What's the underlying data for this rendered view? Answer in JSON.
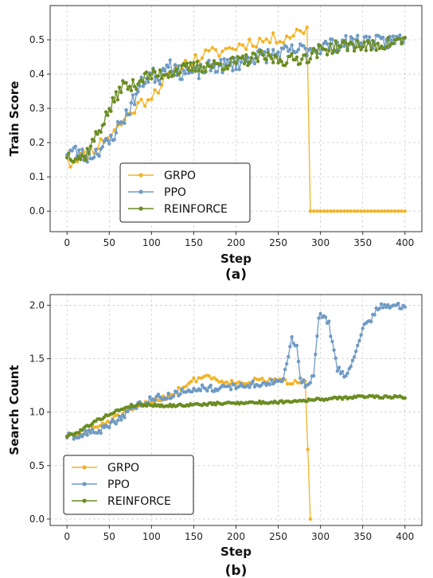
{
  "colors": {
    "GRPO": "#f2b324",
    "PPO": "#6f9ac4",
    "REINFORCE": "#6b8c23"
  },
  "chart_data": [
    {
      "type": "line",
      "caption": "(a)",
      "xlabel": "Step",
      "ylabel": "Train Score",
      "xlim": [
        -20,
        420
      ],
      "ylim": [
        -0.06,
        0.6
      ],
      "xticks": [
        "0",
        "50",
        "100",
        "150",
        "200",
        "250",
        "300",
        "350",
        "400"
      ],
      "yticks": [
        "0.0",
        "0.1",
        "0.2",
        "0.3",
        "0.4",
        "0.5"
      ],
      "grid": true,
      "legend_position": "lower-left",
      "series": [
        {
          "name": "GRPO",
          "anchors": [
            [
              0,
              0.165
            ],
            [
              5,
              0.13
            ],
            [
              10,
              0.16
            ],
            [
              20,
              0.16
            ],
            [
              40,
              0.2
            ],
            [
              60,
              0.245
            ],
            [
              80,
              0.3
            ],
            [
              100,
              0.34
            ],
            [
              115,
              0.38
            ],
            [
              125,
              0.4
            ],
            [
              140,
              0.43
            ],
            [
              150,
              0.44
            ],
            [
              160,
              0.455
            ],
            [
              180,
              0.465
            ],
            [
              200,
              0.48
            ],
            [
              220,
              0.495
            ],
            [
              240,
              0.5
            ],
            [
              260,
              0.51
            ],
            [
              280,
              0.53
            ],
            [
              284,
              0.535
            ],
            [
              286,
              0.0
            ],
            [
              400,
              0.0
            ]
          ],
          "noise": 0.018,
          "step": 4,
          "seed": 11
        },
        {
          "name": "PPO",
          "anchors": [
            [
              0,
              0.175
            ],
            [
              10,
              0.175
            ],
            [
              20,
              0.16
            ],
            [
              30,
              0.165
            ],
            [
              40,
              0.185
            ],
            [
              50,
              0.2
            ],
            [
              60,
              0.245
            ],
            [
              70,
              0.28
            ],
            [
              80,
              0.33
            ],
            [
              90,
              0.38
            ],
            [
              100,
              0.4
            ],
            [
              110,
              0.39
            ],
            [
              115,
              0.425
            ],
            [
              120,
              0.44
            ],
            [
              130,
              0.4
            ],
            [
              140,
              0.41
            ],
            [
              150,
              0.4
            ],
            [
              170,
              0.42
            ],
            [
              200,
              0.43
            ],
            [
              220,
              0.45
            ],
            [
              250,
              0.46
            ],
            [
              275,
              0.47
            ],
            [
              300,
              0.48
            ],
            [
              330,
              0.49
            ],
            [
              350,
              0.5
            ],
            [
              370,
              0.49
            ],
            [
              390,
              0.5
            ],
            [
              400,
              0.51
            ]
          ],
          "noise": 0.022,
          "step": 2,
          "seed": 23
        },
        {
          "name": "REINFORCE",
          "anchors": [
            [
              0,
              0.165
            ],
            [
              10,
              0.16
            ],
            [
              20,
              0.155
            ],
            [
              30,
              0.2
            ],
            [
              40,
              0.245
            ],
            [
              50,
              0.295
            ],
            [
              60,
              0.34
            ],
            [
              65,
              0.37
            ],
            [
              75,
              0.36
            ],
            [
              90,
              0.39
            ],
            [
              110,
              0.4
            ],
            [
              130,
              0.41
            ],
            [
              150,
              0.42
            ],
            [
              170,
              0.425
            ],
            [
              190,
              0.43
            ],
            [
              210,
              0.44
            ],
            [
              230,
              0.45
            ],
            [
              260,
              0.44
            ],
            [
              285,
              0.45
            ],
            [
              300,
              0.47
            ],
            [
              320,
              0.48
            ],
            [
              340,
              0.485
            ],
            [
              360,
              0.48
            ],
            [
              380,
              0.49
            ],
            [
              400,
              0.5
            ]
          ],
          "noise": 0.018,
          "step": 2,
          "seed": 37
        }
      ],
      "legend": [
        "GRPO",
        "PPO",
        "REINFORCE"
      ]
    },
    {
      "type": "line",
      "caption": "(b)",
      "xlabel": "Step",
      "ylabel": "Search Count",
      "xlim": [
        -20,
        420
      ],
      "ylim": [
        -0.06,
        2.1
      ],
      "xticks": [
        "0",
        "50",
        "100",
        "150",
        "200",
        "250",
        "300",
        "350",
        "400"
      ],
      "yticks": [
        "0.0",
        "0.5",
        "1.0",
        "1.5",
        "2.0"
      ],
      "grid": true,
      "legend_position": "lower-left",
      "series": [
        {
          "name": "GRPO",
          "anchors": [
            [
              0,
              0.77
            ],
            [
              20,
              0.8
            ],
            [
              40,
              0.88
            ],
            [
              60,
              0.96
            ],
            [
              80,
              1.03
            ],
            [
              100,
              1.1
            ],
            [
              120,
              1.15
            ],
            [
              140,
              1.25
            ],
            [
              155,
              1.32
            ],
            [
              165,
              1.34
            ],
            [
              180,
              1.3
            ],
            [
              200,
              1.27
            ],
            [
              220,
              1.29
            ],
            [
              240,
              1.3
            ],
            [
              260,
              1.28
            ],
            [
              280,
              1.3
            ],
            [
              284,
              1.32
            ],
            [
              286,
              0.0
            ],
            [
              290,
              0.0
            ]
          ],
          "noise": 0.025,
          "step": 3,
          "seed": 51
        },
        {
          "name": "PPO",
          "anchors": [
            [
              0,
              0.78
            ],
            [
              10,
              0.75
            ],
            [
              20,
              0.8
            ],
            [
              40,
              0.83
            ],
            [
              60,
              0.93
            ],
            [
              80,
              1.05
            ],
            [
              100,
              1.13
            ],
            [
              120,
              1.15
            ],
            [
              140,
              1.2
            ],
            [
              160,
              1.23
            ],
            [
              180,
              1.22
            ],
            [
              200,
              1.24
            ],
            [
              220,
              1.26
            ],
            [
              240,
              1.27
            ],
            [
              255,
              1.3
            ],
            [
              262,
              1.5
            ],
            [
              265,
              1.7
            ],
            [
              272,
              1.6
            ],
            [
              276,
              1.3
            ],
            [
              285,
              1.25
            ],
            [
              292,
              1.35
            ],
            [
              298,
              1.9
            ],
            [
              305,
              1.88
            ],
            [
              310,
              1.82
            ],
            [
              315,
              1.6
            ],
            [
              320,
              1.4
            ],
            [
              330,
              1.35
            ],
            [
              340,
              1.5
            ],
            [
              350,
              1.8
            ],
            [
              360,
              1.85
            ],
            [
              365,
              1.95
            ],
            [
              370,
              2.0
            ],
            [
              385,
              1.99
            ],
            [
              400,
              1.99
            ]
          ],
          "noise": 0.03,
          "step": 2,
          "seed": 63
        },
        {
          "name": "REINFORCE",
          "anchors": [
            [
              0,
              0.78
            ],
            [
              10,
              0.8
            ],
            [
              20,
              0.85
            ],
            [
              35,
              0.92
            ],
            [
              50,
              0.98
            ],
            [
              65,
              1.03
            ],
            [
              75,
              1.06
            ],
            [
              90,
              1.07
            ],
            [
              120,
              1.06
            ],
            [
              150,
              1.07
            ],
            [
              180,
              1.08
            ],
            [
              210,
              1.09
            ],
            [
              240,
              1.09
            ],
            [
              260,
              1.1
            ],
            [
              280,
              1.11
            ],
            [
              300,
              1.12
            ],
            [
              320,
              1.13
            ],
            [
              340,
              1.14
            ],
            [
              360,
              1.15
            ],
            [
              380,
              1.14
            ],
            [
              395,
              1.15
            ],
            [
              400,
              1.13
            ]
          ],
          "noise": 0.012,
          "step": 2,
          "seed": 79
        }
      ],
      "legend": [
        "GRPO",
        "PPO",
        "REINFORCE"
      ]
    }
  ]
}
